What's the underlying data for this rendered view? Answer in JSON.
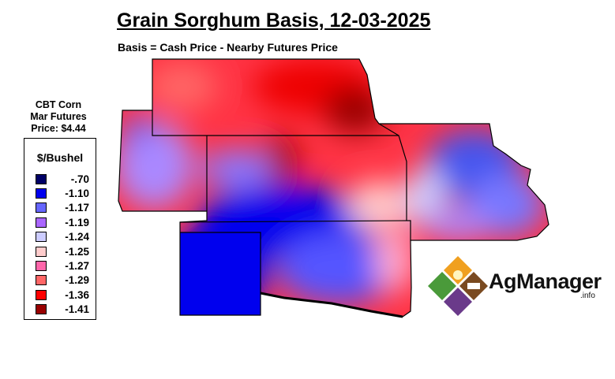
{
  "title": "Grain Sorghum Basis, 12-03-2025",
  "subtitle": "Basis = Cash Price - Nearby Futures Price",
  "futures": {
    "line1": "CBT Corn",
    "line2": "Mar Futures",
    "line3": "Price: $4.44"
  },
  "legend": {
    "title": "$/Bushel",
    "items": [
      {
        "label": "-.70",
        "color": "#000066"
      },
      {
        "label": "-1.10",
        "color": "#0000ee"
      },
      {
        "label": "-1.17",
        "color": "#6666ff"
      },
      {
        "label": "-1.19",
        "color": "#aa66ff"
      },
      {
        "label": "-1.24",
        "color": "#ccccff"
      },
      {
        "label": "-1.25",
        "color": "#ffcccc"
      },
      {
        "label": "-1.27",
        "color": "#ff66aa"
      },
      {
        "label": "-1.29",
        "color": "#ff6666"
      },
      {
        "label": "-1.36",
        "color": "#ff0000"
      },
      {
        "label": "-1.41",
        "color": "#990000"
      }
    ]
  },
  "logo": {
    "name": "AgManager",
    "suffix": ".info"
  }
}
